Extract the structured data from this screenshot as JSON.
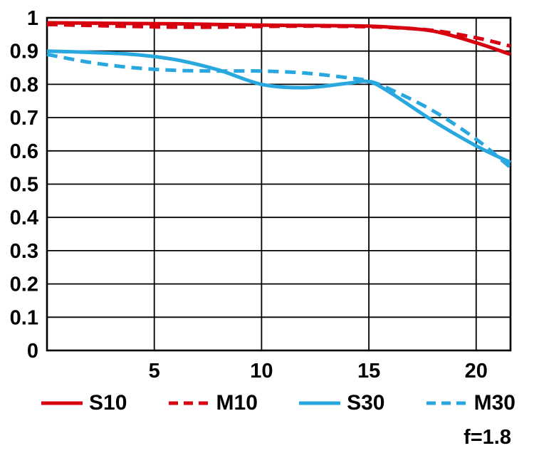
{
  "chart_data": {
    "type": "line",
    "title": "",
    "xlabel": "",
    "ylabel": "",
    "xlim": [
      0,
      21.6
    ],
    "ylim": [
      0,
      1
    ],
    "xticks": [
      5,
      10,
      15,
      20
    ],
    "yticks": [
      0,
      0.1,
      0.2,
      0.3,
      0.4,
      0.5,
      0.6,
      0.7,
      0.8,
      0.9,
      1
    ],
    "grid": true,
    "legend_position": "bottom",
    "x": [
      0,
      2,
      4,
      6,
      8,
      10,
      12,
      14,
      15,
      16,
      18,
      20,
      21.6
    ],
    "series": [
      {
        "name": "S10",
        "color": "#d7000f",
        "style": "solid",
        "values": [
          0.985,
          0.984,
          0.983,
          0.982,
          0.98,
          0.978,
          0.977,
          0.976,
          0.975,
          0.972,
          0.96,
          0.925,
          0.89
        ]
      },
      {
        "name": "M10",
        "color": "#d7000f",
        "style": "dashed",
        "values": [
          0.98,
          0.977,
          0.974,
          0.972,
          0.972,
          0.974,
          0.975,
          0.974,
          0.973,
          0.971,
          0.962,
          0.94,
          0.915
        ]
      },
      {
        "name": "S30",
        "color": "#29a8e0",
        "style": "solid",
        "values": [
          0.9,
          0.896,
          0.89,
          0.874,
          0.843,
          0.8,
          0.79,
          0.803,
          0.808,
          0.775,
          0.69,
          0.615,
          0.565
        ]
      },
      {
        "name": "M30",
        "color": "#29a8e0",
        "style": "dashed",
        "values": [
          0.89,
          0.866,
          0.85,
          0.842,
          0.84,
          0.84,
          0.834,
          0.82,
          0.81,
          0.785,
          0.72,
          0.635,
          0.55
        ]
      }
    ]
  },
  "annotation": "f=1.8",
  "colors": {
    "red": "#d7000f",
    "blue": "#29a8e0",
    "grid": "#000000",
    "background": "#ffffff"
  }
}
